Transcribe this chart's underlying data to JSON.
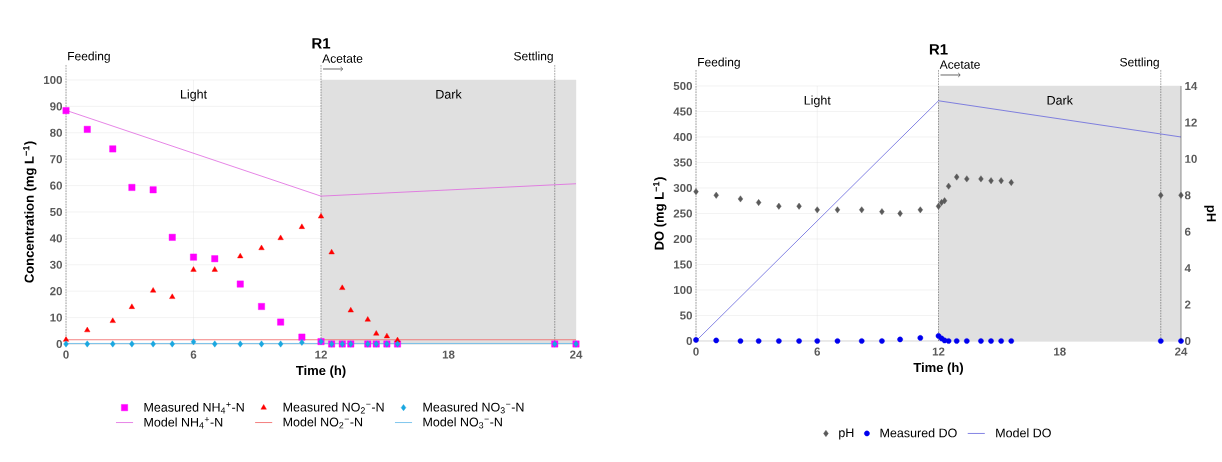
{
  "chart_data": [
    {
      "type": "line",
      "title": "R1",
      "xlabel": "Time (h)",
      "ylabel": "Concentration (mg L$^{−1}$)",
      "xlim": [
        0,
        24
      ],
      "xticks": [
        0,
        6,
        12,
        18,
        24
      ],
      "ylim": [
        0,
        100
      ],
      "yticks": [
        0,
        10,
        20,
        30,
        40,
        50,
        60,
        70,
        80,
        90,
        100
      ],
      "grid": true,
      "legend": "bottom",
      "annotations": [
        "Light"
      ],
      "ref_lines": [
        {
          "axis": "x",
          "value": 0,
          "label": "Feeding",
          "line_style": "dotted"
        },
        {
          "axis": "x",
          "value": 12,
          "label": "Acetate",
          "line_style": "dotted"
        },
        {
          "axis": "x",
          "value": 23,
          "label": "Settling",
          "line_style": "dotted"
        }
      ],
      "bands": [
        {
          "axis": "x",
          "from": 12,
          "to": 24,
          "label": "Dark",
          "color": "#e0e0e0"
        }
      ],
      "series": [
        {
          "name": "Measured NH$_{4}$$^{+}$-N",
          "type": "scatter",
          "marker": "square",
          "color": "#ff00ff",
          "x": [
            0,
            1,
            2.2,
            3.1,
            4.1,
            5,
            6,
            7,
            8.2,
            9.2,
            10.1,
            11.1,
            12,
            12.5,
            13,
            13.4,
            14.2,
            14.6,
            15.1,
            15.6,
            23,
            24
          ],
          "values": [
            88.4,
            81.3,
            73.9,
            59.3,
            58.4,
            40.4,
            32.9,
            32.3,
            22.7,
            14.2,
            8.3,
            2.6,
            0.9,
            0,
            0,
            0,
            0,
            0,
            0,
            0,
            0,
            0
          ]
        },
        {
          "name": "Measured NO$_{2}$$^{−}$-N",
          "type": "scatter",
          "marker": "triangle",
          "color": "#ff0000",
          "x": [
            0,
            1,
            2.2,
            3.1,
            4.1,
            5,
            6,
            7,
            8.2,
            9.2,
            10.1,
            11.1,
            12,
            12.5,
            13,
            13.4,
            14.2,
            14.6,
            15.1,
            15.6
          ],
          "values": [
            1.6,
            5.2,
            8.7,
            14,
            20.2,
            17.8,
            28.1,
            28.1,
            33.2,
            36.3,
            40.1,
            44.3,
            48.3,
            34.7,
            21.2,
            12.7,
            9.2,
            3.9,
            2.9,
            1.4
          ]
        },
        {
          "name": "Measured NO$_{3}$$^{−}$-N",
          "type": "scatter",
          "marker": "diamond",
          "color": "#1aa7e0",
          "x": [
            0,
            1,
            2.2,
            3.1,
            4.1,
            5,
            6,
            7,
            8.2,
            9.2,
            10.1,
            11.1,
            12,
            12.5,
            13,
            13.4,
            14.2,
            14.6,
            15.1,
            15.6,
            23,
            24
          ],
          "values": [
            0,
            0,
            0,
            0,
            0,
            0,
            0.8,
            0,
            0,
            0,
            0,
            0.6,
            0.9,
            0,
            0,
            0,
            0,
            0,
            0,
            0,
            0,
            0
          ]
        },
        {
          "name": "Model NH$_{4}$$^{+}$-N",
          "color": "#e066e0",
          "x": [
            0,
            12,
            24
          ],
          "values": [
            88.5,
            56,
            60.7
          ]
        },
        {
          "name": "Model NO$_{2}$$^{−}$-N",
          "color": "#f06060",
          "x": [
            0,
            24
          ],
          "values": [
            1.6,
            1.6
          ]
        },
        {
          "name": "Model NO$_{3}$$^{−}$-N",
          "color": "#60b8e8",
          "x": [
            0,
            24
          ],
          "values": [
            0.2,
            0.2
          ]
        }
      ]
    },
    {
      "type": "line",
      "title": "R1",
      "xlabel": "Time (h)",
      "ylabel": "DO (mg L$^{−1}$)",
      "y2label": "pH",
      "xlim": [
        0,
        24
      ],
      "xticks": [
        0,
        6,
        12,
        18,
        24
      ],
      "ylim": [
        0,
        500
      ],
      "yticks": [
        0,
        50,
        100,
        150,
        200,
        250,
        300,
        350,
        400,
        450,
        500
      ],
      "y2lim": [
        0,
        14
      ],
      "y2ticks": [
        0,
        2,
        4,
        6,
        8,
        10,
        12,
        14
      ],
      "grid": true,
      "legend": "bottom",
      "annotations": [
        "Light"
      ],
      "ref_lines": [
        {
          "axis": "x",
          "value": 0,
          "label": "Feeding",
          "line_style": "dotted"
        },
        {
          "axis": "x",
          "value": 12,
          "label": "Acetate",
          "line_style": "dotted"
        },
        {
          "axis": "x",
          "value": 23,
          "label": "Settling",
          "line_style": "dotted"
        }
      ],
      "bands": [
        {
          "axis": "x",
          "from": 12,
          "to": 24,
          "label": "Dark",
          "color": "#e0e0e0"
        }
      ],
      "series": [
        {
          "name": "pH",
          "type": "scatter",
          "marker": "diamond",
          "axis": "y2",
          "color": "#5a5a5a",
          "x": [
            0,
            1,
            2.2,
            3.1,
            4.1,
            5.1,
            6,
            7,
            8.2,
            9.2,
            10.1,
            11.1,
            12,
            12.15,
            12.3,
            12.5,
            12.9,
            13.4,
            14.1,
            14.6,
            15.1,
            15.6,
            23,
            24
          ],
          "values": [
            8.2,
            8.0,
            7.8,
            7.6,
            7.4,
            7.4,
            7.2,
            7.2,
            7.2,
            7.1,
            7.0,
            7.2,
            7.4,
            7.6,
            7.7,
            8.5,
            9.0,
            8.9,
            8.9,
            8.8,
            8.8,
            8.7,
            8.0,
            8.0
          ]
        },
        {
          "name": "Measured DO",
          "type": "scatter",
          "marker": "circle",
          "color": "#0000ee",
          "x": [
            0,
            1,
            2.2,
            3.1,
            4.1,
            5.1,
            6,
            7,
            8.2,
            9.2,
            10.1,
            11.1,
            12,
            12.15,
            12.3,
            12.5,
            12.9,
            13.4,
            14.1,
            14.6,
            15.1,
            15.6,
            23,
            24
          ],
          "values": [
            2,
            1,
            0,
            0,
            0,
            0,
            0,
            0,
            0,
            0,
            3,
            6,
            10,
            5,
            1,
            0,
            0,
            0,
            0,
            0,
            0,
            0,
            0,
            0
          ]
        },
        {
          "name": "Model DO",
          "color": "#6666dd",
          "x": [
            0,
            12,
            24
          ],
          "values": [
            0,
            471,
            400
          ]
        }
      ]
    }
  ]
}
